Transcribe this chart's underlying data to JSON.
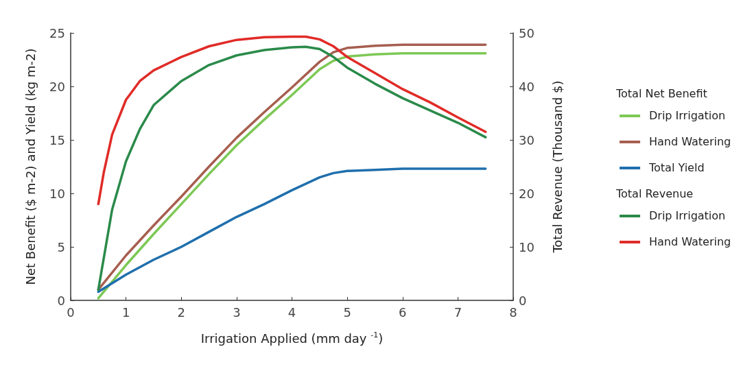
{
  "chart_data": {
    "type": "line",
    "xlabel": "Irrigation Applied (mm day $^{-1}$)",
    "ylabel": "Net Benefit ($ m-2) and Yield (kg m-2)",
    "y2label": "Total Revenue (Thousand $)",
    "xlim": [
      0,
      8
    ],
    "xticks": [
      0,
      1,
      2,
      3,
      4,
      5,
      6,
      7,
      8
    ],
    "ylim": [
      0,
      25
    ],
    "yticks": [
      0,
      5,
      10,
      15,
      20,
      25
    ],
    "y2lim": [
      0,
      50
    ],
    "y2ticks": [
      0,
      10,
      20,
      30,
      40,
      50
    ],
    "grid": false,
    "legend": "right",
    "marker": "none",
    "line_style": "solid",
    "annotations": [
      "Total Net Benefit",
      "Total Revenue"
    ],
    "series": [
      {
        "name": "Drip Irrigation",
        "color": "#7dc855",
        "x": [
          0.5,
          1,
          1.5,
          2,
          2.5,
          3,
          3.5,
          4,
          4.5,
          4.75,
          5,
          5.5,
          6,
          7.5
        ],
        "values": [
          0.2,
          3.3,
          6.2,
          9.0,
          11.8,
          14.5,
          16.9,
          19.2,
          21.6,
          22.4,
          22.8,
          23.0,
          23.1,
          23.1
        ]
      },
      {
        "name": "Hand Watering",
        "color": "#a65e4f",
        "x": [
          0.5,
          1,
          1.5,
          2,
          2.5,
          3,
          3.5,
          4,
          4.5,
          4.75,
          5,
          5.5,
          6,
          7.5
        ],
        "values": [
          1.0,
          4.2,
          7.0,
          9.7,
          12.5,
          15.2,
          17.6,
          19.9,
          22.3,
          23.2,
          23.6,
          23.8,
          23.9,
          23.9
        ]
      },
      {
        "name": "Total Yield",
        "color": "#1f6fad",
        "x": [
          0.5,
          1,
          1.5,
          2,
          2.5,
          3,
          3.5,
          4,
          4.5,
          4.75,
          5,
          5.5,
          6,
          7.5
        ],
        "values": [
          0.8,
          2.4,
          3.8,
          5.0,
          6.4,
          7.8,
          9.0,
          10.3,
          11.5,
          11.9,
          12.1,
          12.2,
          12.3,
          12.3
        ]
      },
      {
        "name": "Drip Irrigation",
        "color": "#2a8a4a",
        "axis": "y2",
        "x": [
          0.5,
          0.6,
          0.75,
          1,
          1.25,
          1.5,
          2,
          2.5,
          3,
          3.5,
          4,
          4.25,
          4.5,
          4.75,
          5,
          5.5,
          6,
          6.5,
          7,
          7.5
        ],
        "values": [
          2,
          8,
          17,
          26,
          32,
          36.5,
          41,
          44,
          45.8,
          46.8,
          47.3,
          47.4,
          47,
          45.5,
          43.5,
          40.5,
          37.8,
          35.5,
          33.2,
          30.5
        ]
      },
      {
        "name": "Hand Watering",
        "color": "#e02b27",
        "axis": "y2",
        "x": [
          0.5,
          0.6,
          0.75,
          1,
          1.25,
          1.5,
          2,
          2.5,
          3,
          3.5,
          4,
          4.25,
          4.5,
          4.75,
          5,
          5.5,
          6,
          6.5,
          7,
          7.5
        ],
        "values": [
          18,
          24,
          31,
          37.5,
          41,
          43,
          45.5,
          47.5,
          48.7,
          49.2,
          49.3,
          49.3,
          48.8,
          47.5,
          45.5,
          42.5,
          39.5,
          37,
          34.2,
          31.5
        ]
      }
    ]
  }
}
